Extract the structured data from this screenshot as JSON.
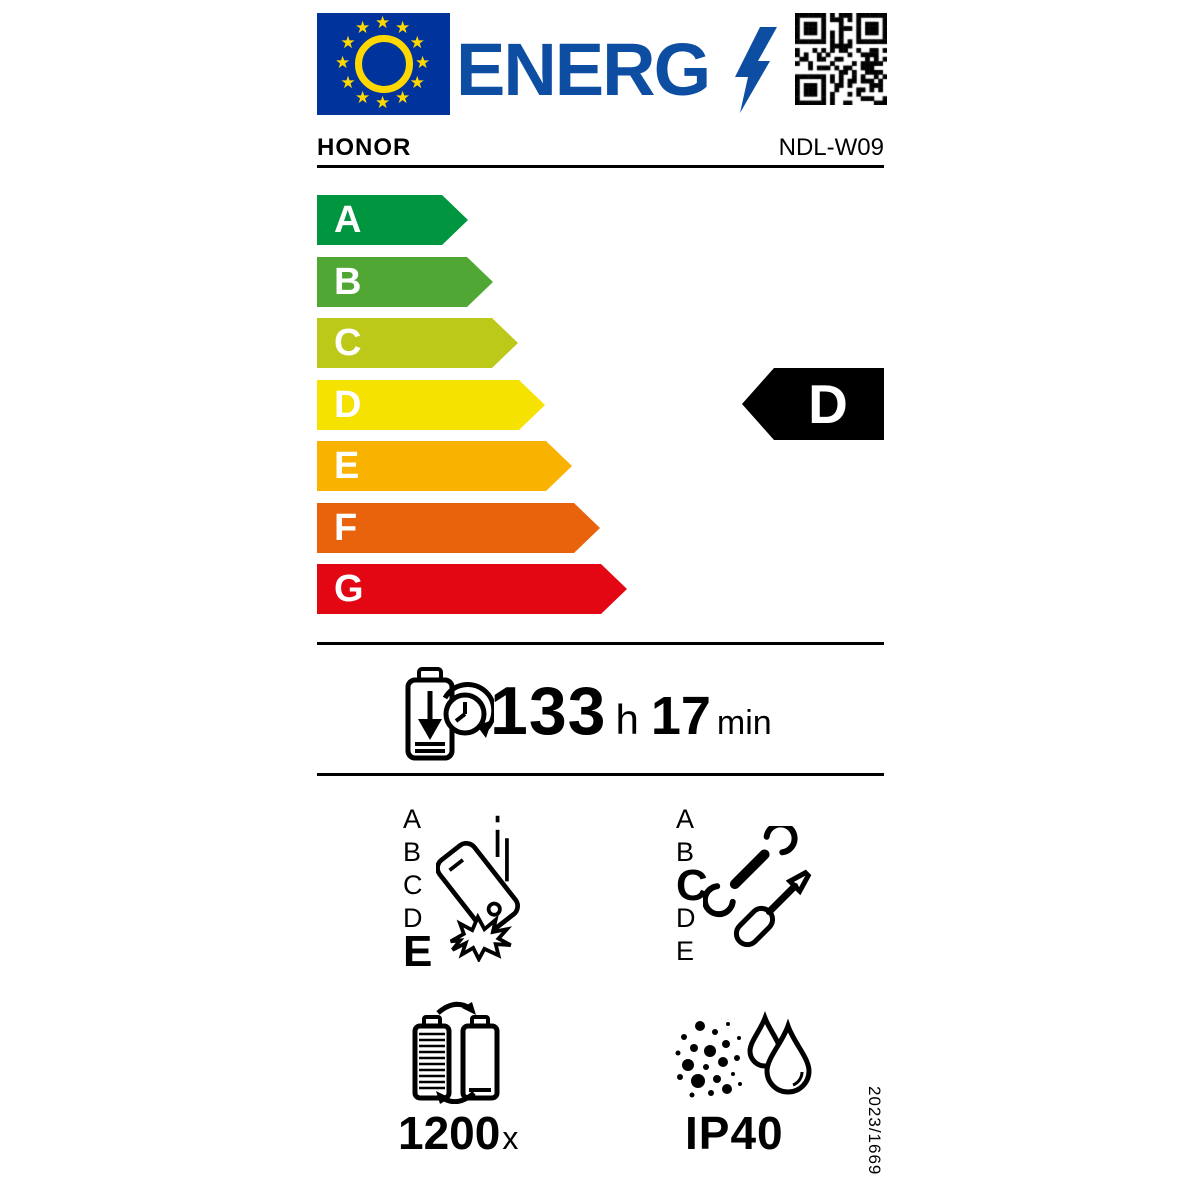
{
  "header": {
    "logo_text": "ENERG",
    "brand": "HONOR",
    "model": "NDL-W09"
  },
  "colors": {
    "logo_blue": "#0d4ea2",
    "eu_flag_blue": "#00339b",
    "eu_star_yellow": "#ffd800",
    "rating_arrow": "#000000"
  },
  "efficiency_scale": [
    {
      "grade": "A",
      "color": "#009640"
    },
    {
      "grade": "B",
      "color": "#50a733"
    },
    {
      "grade": "C",
      "color": "#bcc918"
    },
    {
      "grade": "D",
      "color": "#f6e200"
    },
    {
      "grade": "E",
      "color": "#f9b200"
    },
    {
      "grade": "F",
      "color": "#e8630c"
    },
    {
      "grade": "G",
      "color": "#e30613"
    }
  ],
  "rating": {
    "grade": "D"
  },
  "battery_endurance": {
    "hours": "133",
    "hours_unit": "h",
    "minutes": "17",
    "minutes_unit": "min"
  },
  "drop_reliability": {
    "scale": [
      "A",
      "B",
      "C",
      "D",
      "E"
    ],
    "grade": "E"
  },
  "repairability": {
    "scale": [
      "A",
      "B",
      "C",
      "D",
      "E"
    ],
    "grade": "C"
  },
  "battery_cycles": {
    "count": "1200",
    "suffix": "x"
  },
  "ingress_protection": {
    "rating": "IP40"
  },
  "regulation": "2023/1669"
}
